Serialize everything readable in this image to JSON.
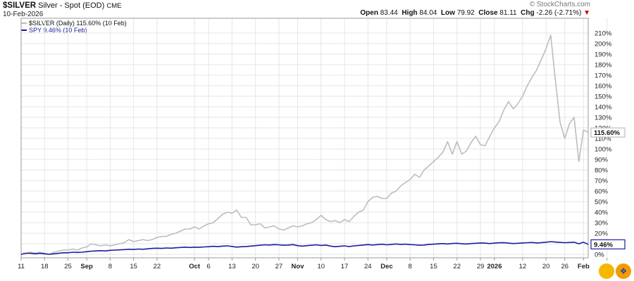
{
  "header": {
    "symbol": "$SILVER",
    "name": "Silver - Spot (EOD)",
    "exchange": "CME",
    "date": "10-Feb-2026"
  },
  "brand": "© StockCharts.com",
  "ohlc": {
    "open_label": "Open",
    "open": "83.44",
    "high_label": "High",
    "high": "84.04",
    "low_label": "Low",
    "low": "79.92",
    "close_label": "Close",
    "close": "81.11",
    "chg_label": "Chg",
    "chg": "-2.26 (-2.71%)"
  },
  "legend": [
    {
      "text": "$SILVER (Daily) 115.60% (10 Feb)",
      "color": "#bdbdbd"
    },
    {
      "text": "SPY 9.46% (10 Feb)",
      "color": "#1c1c9c"
    }
  ],
  "colors": {
    "silver": "#bdbdbd",
    "spy": "#1c1c9c",
    "grid": "#e6e6e6",
    "down": "#cc0000",
    "fab_left": "#f5b700",
    "fab_right": "#f59a00"
  },
  "chart_data": {
    "type": "line",
    "yunit": "%",
    "ylim": [
      -4,
      213
    ],
    "yticks": [
      0,
      10,
      20,
      30,
      40,
      50,
      60,
      70,
      80,
      90,
      100,
      110,
      120,
      130,
      140,
      150,
      160,
      170,
      180,
      190,
      200,
      210
    ],
    "xticks": [
      {
        "label": "11",
        "idx": 0
      },
      {
        "label": "18",
        "idx": 5
      },
      {
        "label": "25",
        "idx": 10
      },
      {
        "label": "Sep",
        "idx": 14,
        "bold": true
      },
      {
        "label": "8",
        "idx": 19
      },
      {
        "label": "15",
        "idx": 24
      },
      {
        "label": "22",
        "idx": 29
      },
      {
        "label": "Oct",
        "idx": 37,
        "bold": true
      },
      {
        "label": "6",
        "idx": 40
      },
      {
        "label": "13",
        "idx": 45
      },
      {
        "label": "20",
        "idx": 50
      },
      {
        "label": "27",
        "idx": 55
      },
      {
        "label": "Nov",
        "idx": 59,
        "bold": true
      },
      {
        "label": "10",
        "idx": 64
      },
      {
        "label": "17",
        "idx": 69
      },
      {
        "label": "24",
        "idx": 74
      },
      {
        "label": "Dec",
        "idx": 78,
        "bold": true
      },
      {
        "label": "8",
        "idx": 83
      },
      {
        "label": "15",
        "idx": 88
      },
      {
        "label": "22",
        "idx": 93
      },
      {
        "label": "29",
        "idx": 98
      },
      {
        "label": "2026",
        "idx": 101,
        "bold": true
      },
      {
        "label": "12",
        "idx": 107
      },
      {
        "label": "20",
        "idx": 112
      },
      {
        "label": "26",
        "idx": 116
      },
      {
        "label": "Feb",
        "idx": 120,
        "bold": true
      },
      {
        "label": "9",
        "idx": 125
      }
    ],
    "series": [
      {
        "name": "$SILVER",
        "last_label": "115.60%",
        "values": [
          0,
          1,
          2,
          1,
          2,
          1,
          0,
          2,
          3,
          4,
          4,
          5,
          4,
          6,
          7,
          10,
          9,
          8,
          9,
          8,
          9,
          10,
          11,
          14,
          12,
          13,
          14,
          13,
          14,
          16,
          17,
          17,
          19,
          20,
          22,
          24,
          24,
          26,
          24,
          27,
          29,
          30,
          34,
          38,
          40,
          39,
          42,
          35,
          35,
          28,
          28,
          29,
          25,
          26,
          27,
          24,
          23,
          25,
          27,
          26,
          27,
          29,
          30,
          33,
          37,
          33,
          31,
          32,
          30,
          33,
          31,
          36,
          40,
          42,
          50,
          54,
          55,
          53,
          53,
          58,
          60,
          65,
          68,
          71,
          76,
          73,
          80,
          84,
          88,
          92,
          97,
          107,
          95,
          107,
          95,
          98,
          106,
          112,
          104,
          103,
          112,
          120,
          126,
          137,
          145,
          138,
          143,
          150,
          160,
          168,
          175,
          185,
          195,
          208,
          165,
          125,
          110,
          124,
          130,
          88,
          118,
          115.6
        ]
      },
      {
        "name": "SPY",
        "last_label": "9.46%",
        "values": [
          0,
          1,
          1,
          0.5,
          1,
          0.5,
          0,
          0.5,
          1,
          1.5,
          1.5,
          2,
          1.8,
          2,
          2.5,
          3,
          3.2,
          3.5,
          3.2,
          3.8,
          4,
          4.2,
          4.5,
          4.8,
          4.6,
          5,
          4.8,
          5.2,
          5.6,
          5.8,
          5.6,
          6,
          5.8,
          6.2,
          6.5,
          6.8,
          6.5,
          6.8,
          6.6,
          7,
          7.2,
          7.6,
          7.3,
          7.8,
          8,
          7.5,
          6.8,
          7.2,
          7.4,
          7.8,
          8.2,
          8.6,
          9,
          8.8,
          9.2,
          9,
          8.6,
          8.8,
          9.2,
          8.2,
          7.8,
          8.2,
          8.6,
          9,
          8.4,
          8.8,
          7.8,
          7.2,
          7.6,
          8,
          7.4,
          8,
          8.4,
          8.8,
          9.2,
          8.8,
          9.2,
          9.6,
          9,
          9.4,
          9.8,
          9.4,
          9.6,
          9.2,
          9,
          8.6,
          8.8,
          9.4,
          9.6,
          9.9,
          10.2,
          9.8,
          10.3,
          10.5,
          10.1,
          9.8,
          10.2,
          10.5,
          10.8,
          10.6,
          10.2,
          10.6,
          10.9,
          11.1,
          10.6,
          10.2,
          10.5,
          10.8,
          11,
          11.2,
          10.8,
          11.1,
          11.5,
          12,
          11.6,
          11.3,
          11,
          11.2,
          11.5,
          10,
          11.5,
          9.46
        ]
      }
    ]
  }
}
